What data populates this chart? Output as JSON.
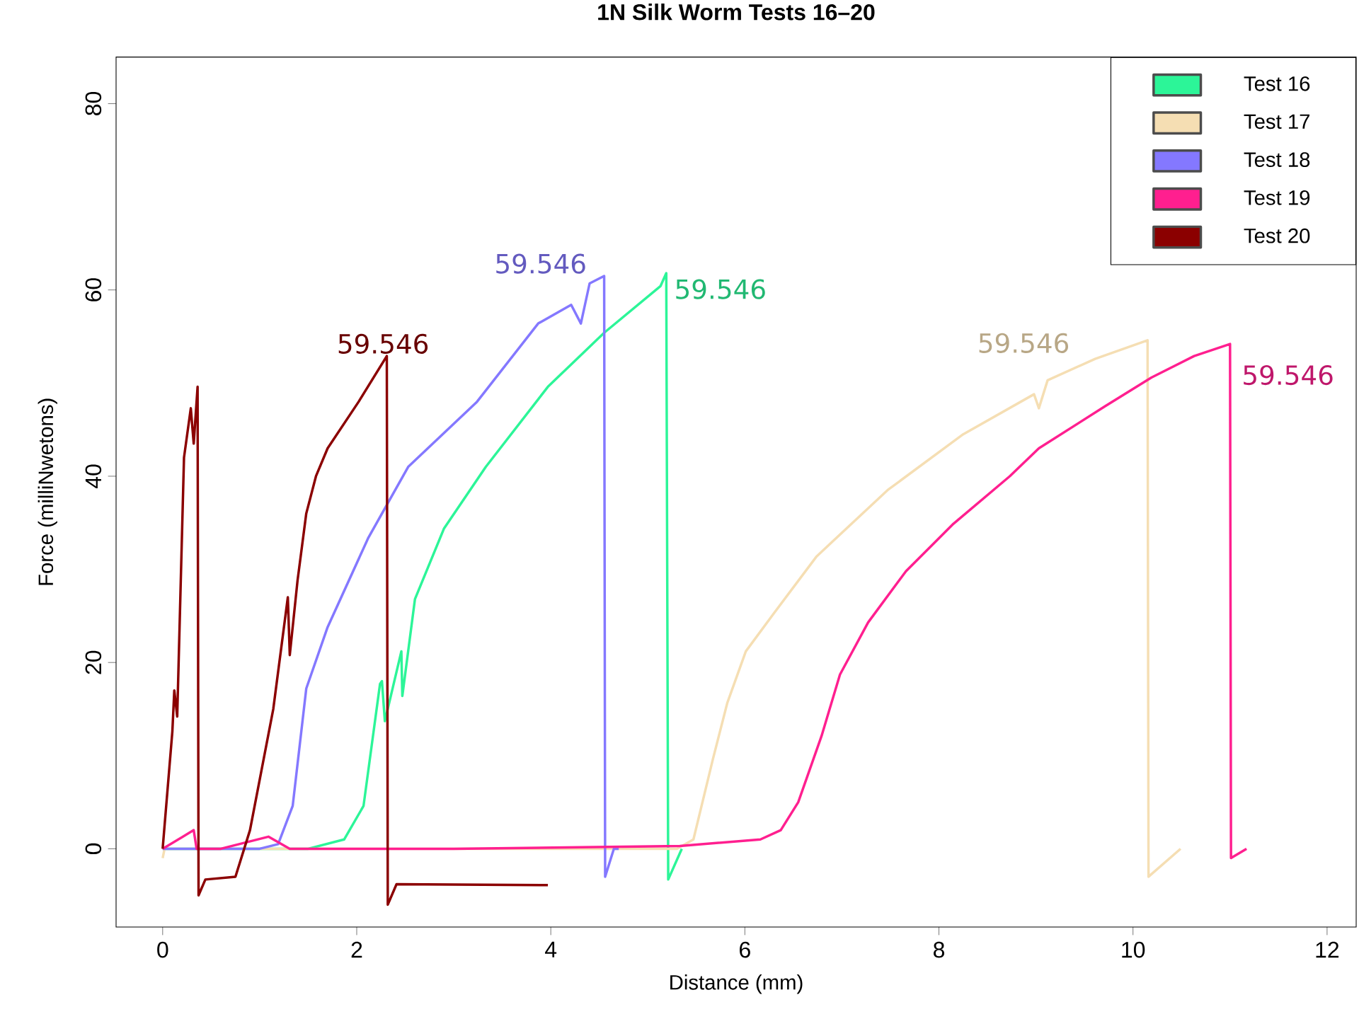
{
  "chart_data": {
    "type": "line",
    "title": "1N Silk Worm Tests 16–20",
    "xlabel": "Distance (mm)",
    "ylabel": "Force (milliNwetons)",
    "xlim": [
      -0.48,
      12.3
    ],
    "ylim": [
      -8.4,
      85
    ],
    "xticks": [
      0,
      2,
      4,
      6,
      8,
      10,
      12
    ],
    "yticks": [
      0,
      20,
      40,
      60,
      80
    ],
    "grid": false,
    "legend": "top right",
    "marker": "none",
    "line_style": "solid",
    "series": [
      {
        "name": "Test 16",
        "color": "#2cf598",
        "x": [
          0,
          1.5,
          1.87,
          2.07,
          2.24,
          2.26,
          2.29,
          2.46,
          2.47,
          2.6,
          2.9,
          3.33,
          3.97,
          4.55,
          5.13,
          5.19,
          5.21,
          5.35
        ],
        "values": [
          0,
          0,
          1,
          4.6,
          17.7,
          18,
          13.7,
          21.2,
          16.4,
          26.8,
          34.4,
          41,
          49.6,
          55.4,
          60.4,
          61.8,
          -3.3,
          0
        ]
      },
      {
        "name": "Test 17",
        "color": "#f5deb3",
        "x": [
          0,
          0.02,
          1,
          3,
          5.3,
          5.47,
          5.67,
          5.82,
          6.01,
          6.3,
          6.74,
          7.47,
          8.25,
          8.98,
          9.03,
          9.12,
          9.61,
          10.15,
          10.16,
          10.49
        ],
        "values": [
          -1,
          0,
          0,
          0,
          0,
          1,
          9.6,
          15.7,
          21.2,
          25.3,
          31.4,
          38.5,
          44.5,
          48.8,
          47.3,
          50.3,
          52.6,
          54.6,
          -3,
          0
        ]
      },
      {
        "name": "Test 18",
        "color": "#8478ff",
        "x": [
          0,
          1.0,
          1.19,
          1.34,
          1.48,
          1.7,
          2.12,
          2.53,
          3.24,
          3.87,
          4.21,
          4.31,
          4.4,
          4.55,
          4.56,
          4.65,
          4.7
        ],
        "values": [
          0,
          0,
          0.5,
          4.6,
          17.2,
          23.8,
          33.4,
          41,
          48,
          56.4,
          58.4,
          56.4,
          60.7,
          61.5,
          -3,
          0,
          0
        ]
      },
      {
        "name": "Test 19",
        "color": "#ff1f8f",
        "x": [
          0,
          0.32,
          0.35,
          0.6,
          1.09,
          1.31,
          3,
          5.33,
          6.16,
          6.37,
          6.55,
          6.79,
          6.98,
          7.27,
          7.66,
          8.15,
          8.73,
          9.03,
          9.71,
          10.19,
          10.63,
          11.0,
          11.01,
          11.17
        ],
        "values": [
          0,
          2,
          0,
          0,
          1.3,
          0,
          0,
          0.3,
          1,
          2,
          5,
          12.1,
          18.7,
          24.3,
          29.8,
          34.9,
          40,
          43,
          47.5,
          50.6,
          52.9,
          54.2,
          -1,
          0
        ]
      },
      {
        "name": "Test 20",
        "color": "#8b0000",
        "x": [
          0,
          0.1,
          0.12,
          0.15,
          0.22,
          0.29,
          0.32,
          0.36,
          0.37,
          0.44,
          0.75,
          0.9,
          1.14,
          1.29,
          1.31,
          1.39,
          1.48,
          1.58,
          1.7,
          2.02,
          2.31,
          2.32,
          2.41,
          3.97
        ],
        "values": [
          0,
          12.6,
          17,
          14.2,
          42,
          47.3,
          43.5,
          49.6,
          -5,
          -3.3,
          -3,
          2,
          15,
          27,
          20.8,
          28.8,
          36,
          40,
          43,
          48,
          52.9,
          -6,
          -3.8,
          -3.9
        ]
      }
    ],
    "annotations": [
      "59.546",
      "59.546",
      "59.546",
      "59.546",
      "59.546"
    ]
  }
}
